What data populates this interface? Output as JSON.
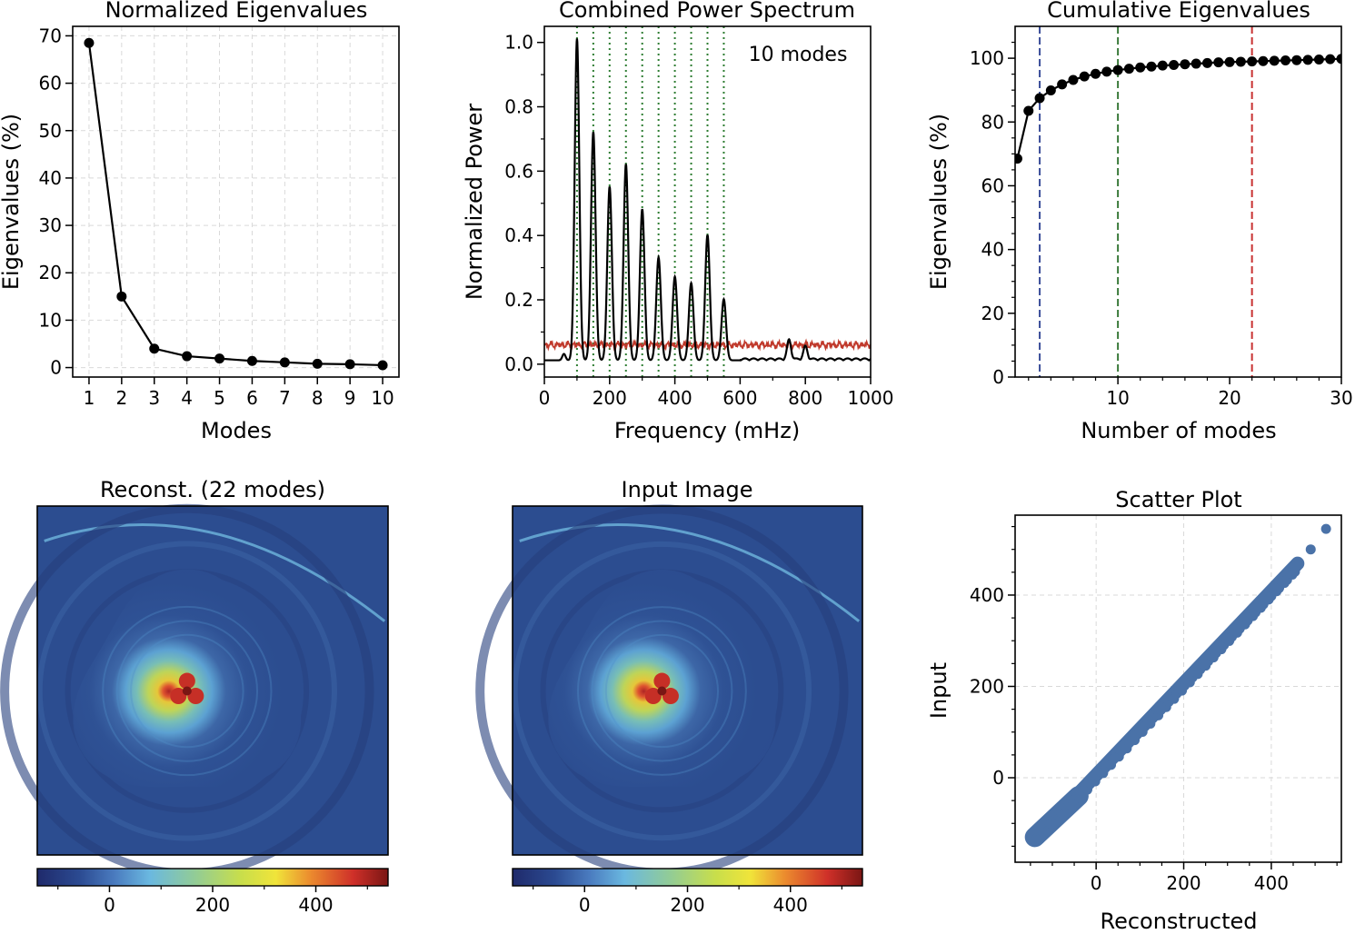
{
  "panels": {
    "eigen": {
      "title": "Normalized Eigenvalues",
      "xlabel": "Modes",
      "ylabel": "Eigenvalues (%)",
      "xticks": [
        "1",
        "2",
        "3",
        "4",
        "5",
        "6",
        "7",
        "8",
        "9",
        "10"
      ],
      "yticks": [
        "0",
        "10",
        "20",
        "30",
        "40",
        "50",
        "60",
        "70"
      ]
    },
    "spectrum": {
      "title": "Combined Power Spectrum",
      "xlabel": "Frequency (mHz)",
      "ylabel": "Normalized Power",
      "annotation": "10 modes",
      "xticks": [
        "0",
        "200",
        "400",
        "600",
        "800",
        "1000"
      ],
      "yticks": [
        "0.0",
        "0.2",
        "0.4",
        "0.6",
        "0.8",
        "1.0"
      ]
    },
    "cumulative": {
      "title": "Cumulative Eigenvalues",
      "xlabel": "Number of modes",
      "ylabel": "Eigenvalues (%)",
      "xticks": [
        "10",
        "20",
        "30"
      ],
      "yticks": [
        "0",
        "20",
        "40",
        "60",
        "80",
        "100"
      ]
    },
    "recon": {
      "title": "Reconst. (22 modes)",
      "cticks": [
        "0",
        "200",
        "400"
      ]
    },
    "input": {
      "title": "Input Image",
      "cticks": [
        "0",
        "200",
        "400"
      ]
    },
    "scatter": {
      "title": "Scatter Plot",
      "xlabel": "Reconstructed",
      "ylabel": "Input",
      "xticks": [
        "0",
        "200",
        "400"
      ],
      "yticks": [
        "0",
        "200",
        "400"
      ]
    }
  },
  "colors": {
    "line": "#000000",
    "noise": "#c0392b",
    "mode_lines": "#2e7d32",
    "vline_blue": "#3b4f9a",
    "vline_green": "#3a7a3a",
    "vline_red": "#c83232",
    "scatter": "#4a72a8",
    "grid": "#d9d9d9"
  },
  "chart_data": [
    {
      "type": "line",
      "panel": "eigen",
      "x": [
        1,
        2,
        3,
        4,
        5,
        6,
        7,
        8,
        9,
        10
      ],
      "y": [
        68.5,
        15.0,
        4.0,
        2.4,
        1.9,
        1.4,
        1.1,
        0.8,
        0.7,
        0.5
      ],
      "xlim": [
        0.5,
        10.5
      ],
      "ylim": [
        -2,
        72
      ],
      "grid": true,
      "marker": "circle"
    },
    {
      "type": "line",
      "panel": "spectrum",
      "peaks": [
        {
          "freq": 100,
          "power": 1.0
        },
        {
          "freq": 150,
          "power": 0.71
        },
        {
          "freq": 200,
          "power": 0.54
        },
        {
          "freq": 250,
          "power": 0.61
        },
        {
          "freq": 300,
          "power": 0.47
        },
        {
          "freq": 350,
          "power": 0.32
        },
        {
          "freq": 400,
          "power": 0.26
        },
        {
          "freq": 450,
          "power": 0.24
        },
        {
          "freq": 500,
          "power": 0.39
        },
        {
          "freq": 550,
          "power": 0.19
        },
        {
          "freq": 750,
          "power": 0.06
        },
        {
          "freq": 800,
          "power": 0.04
        }
      ],
      "mode_frequencies": [
        100,
        150,
        200,
        250,
        300,
        350,
        400,
        450,
        500,
        550
      ],
      "noise_level": 0.06,
      "xlim": [
        0,
        1000
      ],
      "ylim": [
        -0.04,
        1.05
      ]
    },
    {
      "type": "line",
      "panel": "cumulative",
      "x": [
        1,
        2,
        3,
        4,
        5,
        6,
        7,
        8,
        9,
        10,
        11,
        12,
        13,
        14,
        15,
        16,
        17,
        18,
        19,
        20,
        21,
        22,
        23,
        24,
        25,
        26,
        27,
        28,
        29,
        30
      ],
      "y": [
        68.5,
        83.5,
        87.5,
        89.9,
        91.8,
        93.2,
        94.3,
        95.1,
        95.8,
        96.3,
        96.7,
        97.1,
        97.4,
        97.7,
        97.9,
        98.1,
        98.3,
        98.5,
        98.7,
        98.8,
        98.9,
        99.0,
        99.1,
        99.2,
        99.3,
        99.4,
        99.5,
        99.6,
        99.7,
        99.8
      ],
      "vlines": [
        3,
        10,
        22
      ],
      "xlim": [
        0.8,
        30
      ],
      "ylim": [
        0,
        110
      ]
    },
    {
      "type": "heatmap",
      "panel": "recon",
      "clim": [
        -140,
        540
      ],
      "colormap": "jet-like"
    },
    {
      "type": "heatmap",
      "panel": "input",
      "clim": [
        -140,
        540
      ],
      "colormap": "jet-like"
    },
    {
      "type": "scatter",
      "panel": "scatter",
      "x_range": [
        -140,
        520
      ],
      "y_range": [
        -140,
        545
      ],
      "outliers": [
        [
          490,
          500
        ],
        [
          525,
          545
        ]
      ],
      "xlim": [
        -185,
        560
      ],
      "ylim": [
        -185,
        575
      ],
      "grid": true
    }
  ]
}
